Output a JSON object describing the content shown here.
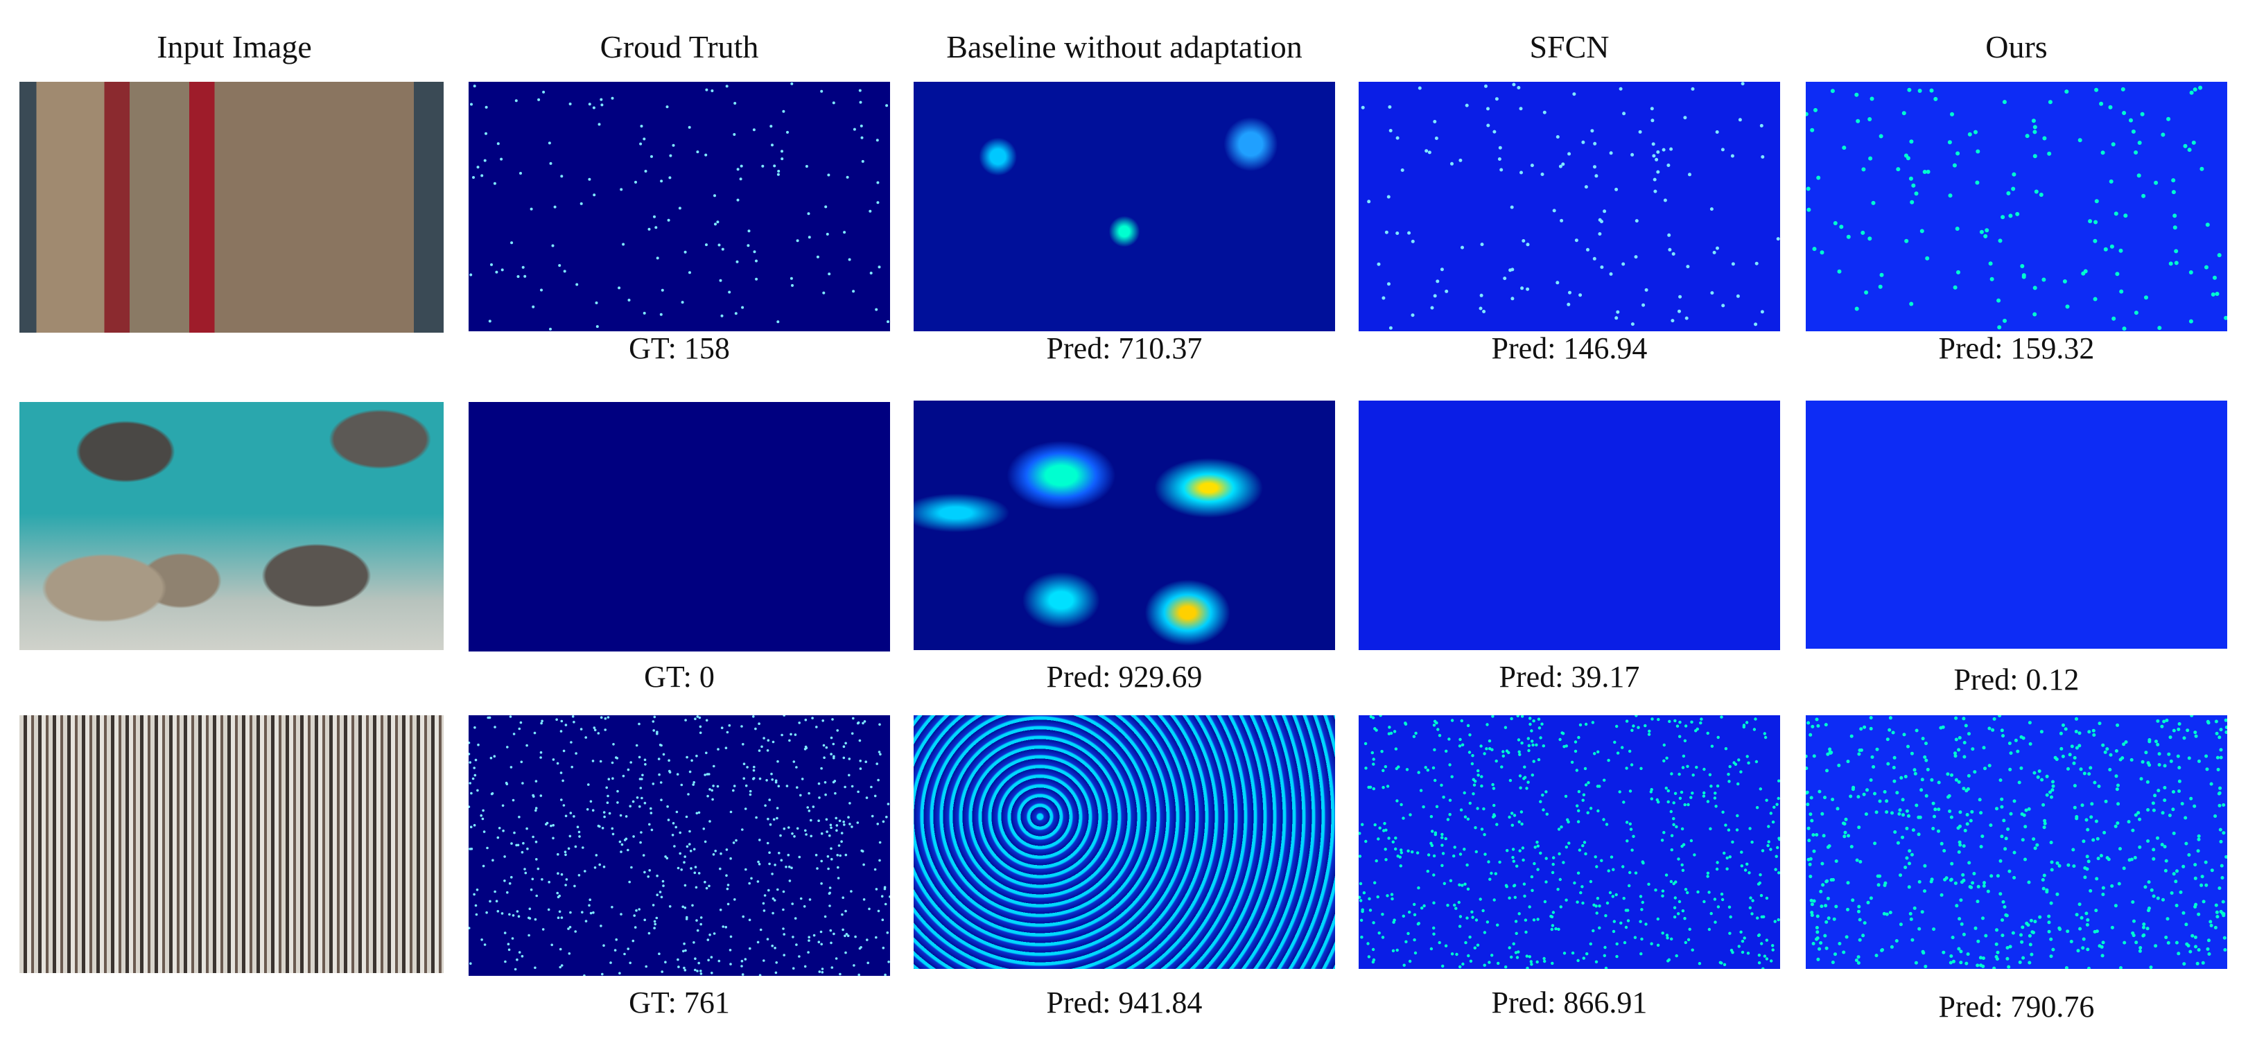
{
  "headers": [
    "Input Image",
    "Groud Truth",
    "Baseline without adaptation",
    "SFCN",
    "Ours"
  ],
  "rows": [
    {
      "input_image": "crowd on boat deck, aerial view",
      "captions": [
        "GT: 158",
        "Pred: 710.37",
        "Pred: 146.94",
        "Pred: 159.32"
      ]
    },
    {
      "input_image": "rocks in turquoise water, aerial view",
      "captions": [
        "GT: 0",
        "Pred: 929.69",
        "Pred: 39.17",
        "Pred: 0.12"
      ]
    },
    {
      "input_image": "dense stadium crowd",
      "captions": [
        "GT: 761",
        "Pred: 941.84",
        "Pred: 866.91",
        "Pred: 790.76"
      ]
    }
  ],
  "colors": {
    "gt_background": "#000080",
    "sfcn_background": "#0a1ee6",
    "ours_background": "#0d2cf5",
    "dot_color": "#7fe8ff",
    "hot_color": "#00ffd0"
  }
}
